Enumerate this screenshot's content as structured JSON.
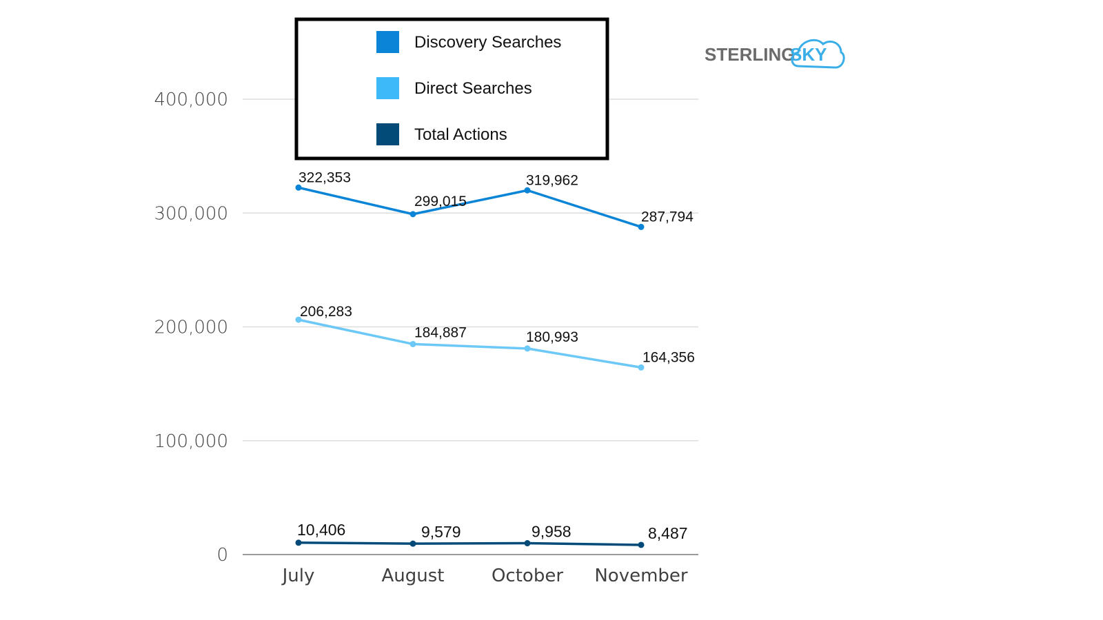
{
  "brand": {
    "logo_text_a": "STERLING",
    "logo_text_b": "SKY",
    "logo_color": "#3aaee8"
  },
  "legend": {
    "placement": "top-center",
    "items": [
      {
        "label": "Discovery Searches",
        "color": "#0a84d6"
      },
      {
        "label": "Direct Searches",
        "color": "#3db8f8"
      },
      {
        "label": "Total Actions",
        "color": "#024a78"
      }
    ]
  },
  "chart_data": {
    "type": "line",
    "title": "",
    "xlabel": "",
    "ylabel": "",
    "categories": [
      "July",
      "August",
      "October",
      "November"
    ],
    "ylim": [
      0,
      400000
    ],
    "yticks": [
      0,
      100000,
      200000,
      300000,
      400000
    ],
    "ytick_labels": [
      "0",
      "100,000",
      "200,000",
      "300,000",
      "400,000"
    ],
    "grid": true,
    "series": [
      {
        "name": "Discovery Searches",
        "color": "#0a84d6",
        "values": [
          322353,
          299015,
          319962,
          287794
        ],
        "labels": [
          "322,353",
          "299,015",
          "319,962",
          "287,794"
        ]
      },
      {
        "name": "Direct Searches",
        "color": "#6cc8f6",
        "values": [
          206283,
          184887,
          180993,
          164356
        ],
        "labels": [
          "206,283",
          "184,887",
          "180,993",
          "164,356"
        ]
      },
      {
        "name": "Total Actions",
        "color": "#024a78",
        "values": [
          10406,
          9579,
          9958,
          8487
        ],
        "labels": [
          "10,406",
          "9,579",
          "9,958",
          "8,487"
        ]
      }
    ]
  }
}
